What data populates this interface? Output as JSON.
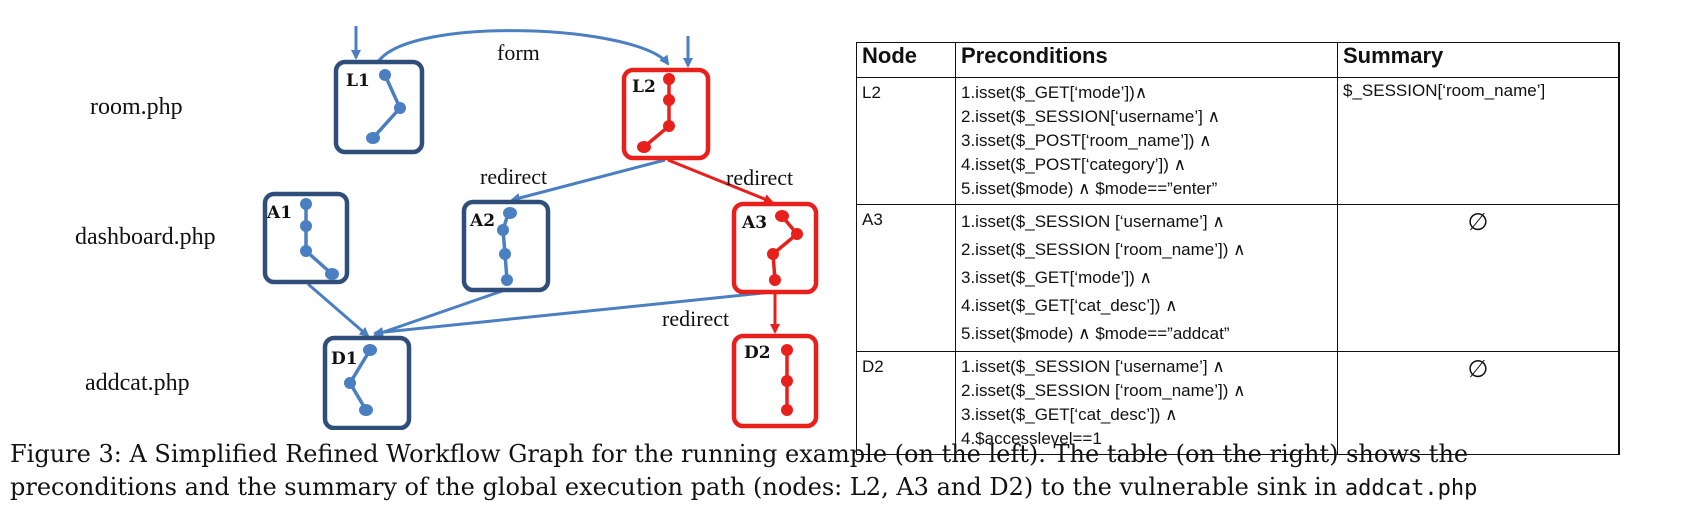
{
  "graph": {
    "pages": [
      "room.php",
      "dashboard.php",
      "addcat.php"
    ],
    "nodes": [
      "L1",
      "L2",
      "A1",
      "A2",
      "A3",
      "D1",
      "D2"
    ],
    "edge_labels": {
      "form": "form",
      "redirect_l2_a2": "redirect",
      "redirect_l2_a3": "redirect",
      "redirect_a3_d2": "redirect"
    },
    "colors": {
      "normal": "#2f4f7a",
      "normal_path": "#4a7fc1",
      "vulnerable": "#e8201c"
    }
  },
  "table": {
    "headers": [
      "Node",
      "Preconditions",
      "Summary"
    ],
    "rows": [
      {
        "node": "L2",
        "preconditions": [
          "1.isset($_GET[‘mode’])∧",
          "2.isset($_SESSION[‘username’] ∧",
          "3.isset($_POST[‘room_name’]) ∧",
          "4.isset($_POST[‘category’]) ∧",
          "5.isset($mode) ∧ $mode==”enter”"
        ],
        "summary": "$_SESSION[‘room_name’]"
      },
      {
        "node": "A3",
        "preconditions": [
          "1.isset($_SESSION [‘username’] ∧",
          "2.isset($_SESSION [‘room_name’]) ∧",
          "3.isset($_GET[‘mode’]) ∧",
          "4.isset($_GET[‘cat_desc’]) ∧",
          "5.isset($mode) ∧ $mode==”addcat”"
        ],
        "summary": "∅"
      },
      {
        "node": "D2",
        "preconditions": [
          "1.isset($_SESSION [‘username’] ∧",
          "2.isset($_SESSION [‘room_name’]) ∧",
          "3.isset($_GET[‘cat_desc’]) ∧",
          "4.$accesslevel==1"
        ],
        "summary": "∅"
      }
    ]
  },
  "caption": {
    "line1": "Figure 3: A Simplified Refined Workflow Graph for the running example (on the left). The table (on the right) shows the",
    "line2_text": "preconditions and the summary of the global execution path (nodes: L2, A3 and D2) to the vulnerable sink in ",
    "line2_code": "addcat.php"
  }
}
